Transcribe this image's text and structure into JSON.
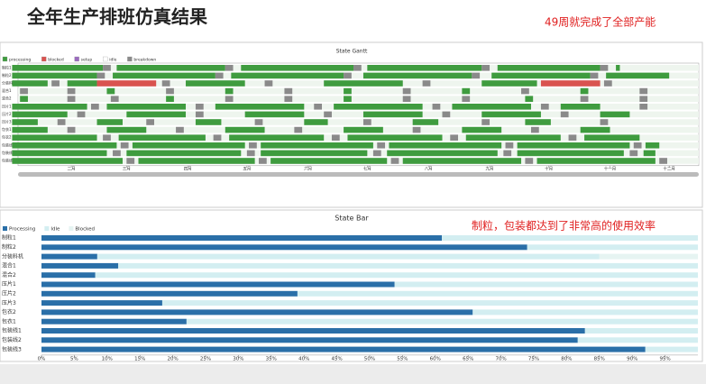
{
  "title": "全年生产排班仿真结果",
  "chart_data": [
    {
      "type": "gantt",
      "title": "State Gantt",
      "annotation": "49周就完成了全部产能",
      "rows": [
        "制粒1",
        "制粒2",
        "分装料机",
        "混合1",
        "混合2",
        "压片1",
        "压片2",
        "压片3",
        "包衣1",
        "包衣2",
        "包装线1",
        "包装线2",
        "包装线3"
      ],
      "states": [
        {
          "name": "processing",
          "color": "#3f9c3f"
        },
        {
          "name": "blocked",
          "color": "#d9534f"
        },
        {
          "name": "setup",
          "color": "#9b6bbf"
        },
        {
          "name": "idle",
          "color": "#ffffff"
        },
        {
          "name": "breakdown",
          "color": "#8a8a8a"
        }
      ],
      "segments": [
        [
          [
            2,
            48,
            0
          ],
          [
            48,
            52,
            4
          ],
          [
            55,
            110,
            0
          ],
          [
            110,
            114,
            4
          ],
          [
            118,
            175,
            0
          ],
          [
            175,
            179,
            4
          ],
          [
            182,
            240,
            0
          ],
          [
            240,
            244,
            4
          ],
          [
            248,
            300,
            0
          ],
          [
            300,
            304,
            4
          ],
          [
            308,
            310,
            0
          ]
        ],
        [
          [
            2,
            45,
            0
          ],
          [
            45,
            49,
            4
          ],
          [
            53,
            105,
            0
          ],
          [
            105,
            109,
            4
          ],
          [
            113,
            170,
            0
          ],
          [
            170,
            174,
            4
          ],
          [
            180,
            235,
            0
          ],
          [
            235,
            239,
            4
          ],
          [
            245,
            295,
            0
          ],
          [
            295,
            299,
            4
          ],
          [
            303,
            335,
            0
          ]
        ],
        [
          [
            2,
            20,
            0
          ],
          [
            22,
            26,
            4
          ],
          [
            30,
            45,
            0
          ],
          [
            45,
            75,
            1
          ],
          [
            78,
            82,
            4
          ],
          [
            90,
            120,
            0
          ],
          [
            130,
            134,
            4
          ],
          [
            160,
            200,
            0
          ],
          [
            210,
            214,
            4
          ],
          [
            240,
            268,
            0
          ],
          [
            270,
            300,
            1
          ],
          [
            302,
            306,
            4
          ]
        ],
        [
          [
            6,
            10,
            4
          ],
          [
            30,
            34,
            4
          ],
          [
            50,
            54,
            0
          ],
          [
            80,
            84,
            4
          ],
          [
            110,
            114,
            0
          ],
          [
            140,
            144,
            4
          ],
          [
            170,
            174,
            0
          ],
          [
            200,
            204,
            4
          ],
          [
            230,
            234,
            0
          ],
          [
            260,
            264,
            4
          ],
          [
            290,
            294,
            0
          ],
          [
            320,
            324,
            4
          ]
        ],
        [
          [
            6,
            10,
            0
          ],
          [
            30,
            34,
            4
          ],
          [
            52,
            56,
            4
          ],
          [
            80,
            84,
            0
          ],
          [
            110,
            114,
            4
          ],
          [
            140,
            144,
            4
          ],
          [
            170,
            174,
            0
          ],
          [
            200,
            204,
            4
          ],
          [
            230,
            234,
            4
          ],
          [
            262,
            266,
            0
          ],
          [
            290,
            294,
            4
          ],
          [
            320,
            324,
            4
          ]
        ],
        [
          [
            2,
            40,
            0
          ],
          [
            42,
            46,
            4
          ],
          [
            50,
            90,
            0
          ],
          [
            95,
            99,
            4
          ],
          [
            105,
            150,
            0
          ],
          [
            155,
            159,
            4
          ],
          [
            165,
            210,
            0
          ],
          [
            215,
            219,
            4
          ],
          [
            225,
            265,
            0
          ],
          [
            270,
            274,
            4
          ],
          [
            280,
            300,
            0
          ],
          [
            320,
            324,
            4
          ]
        ],
        [
          [
            2,
            30,
            0
          ],
          [
            35,
            39,
            4
          ],
          [
            60,
            90,
            0
          ],
          [
            95,
            99,
            4
          ],
          [
            120,
            150,
            0
          ],
          [
            160,
            164,
            4
          ],
          [
            180,
            210,
            0
          ],
          [
            220,
            224,
            4
          ],
          [
            240,
            270,
            0
          ],
          [
            280,
            284,
            4
          ],
          [
            300,
            315,
            0
          ]
        ],
        [
          [
            2,
            15,
            0
          ],
          [
            25,
            29,
            4
          ],
          [
            45,
            58,
            0
          ],
          [
            70,
            74,
            4
          ],
          [
            95,
            108,
            0
          ],
          [
            125,
            129,
            4
          ],
          [
            150,
            162,
            0
          ],
          [
            180,
            184,
            4
          ],
          [
            205,
            218,
            0
          ],
          [
            240,
            244,
            4
          ],
          [
            262,
            275,
            0
          ],
          [
            300,
            304,
            4
          ]
        ],
        [
          [
            2,
            20,
            0
          ],
          [
            30,
            34,
            4
          ],
          [
            50,
            70,
            0
          ],
          [
            85,
            89,
            4
          ],
          [
            110,
            130,
            0
          ],
          [
            145,
            149,
            4
          ],
          [
            170,
            190,
            0
          ],
          [
            205,
            209,
            4
          ],
          [
            230,
            250,
            0
          ],
          [
            265,
            269,
            4
          ],
          [
            290,
            305,
            0
          ]
        ],
        [
          [
            2,
            45,
            0
          ],
          [
            48,
            52,
            4
          ],
          [
            56,
            100,
            0
          ],
          [
            104,
            108,
            4
          ],
          [
            112,
            160,
            0
          ],
          [
            164,
            168,
            4
          ],
          [
            172,
            220,
            0
          ],
          [
            224,
            228,
            4
          ],
          [
            232,
            280,
            0
          ],
          [
            284,
            288,
            4
          ],
          [
            292,
            320,
            0
          ]
        ],
        [
          [
            2,
            55,
            0
          ],
          [
            57,
            61,
            4
          ],
          [
            63,
            120,
            0
          ],
          [
            122,
            126,
            4
          ],
          [
            128,
            185,
            0
          ],
          [
            187,
            191,
            4
          ],
          [
            193,
            250,
            0
          ],
          [
            252,
            256,
            4
          ],
          [
            258,
            315,
            0
          ],
          [
            317,
            321,
            4
          ],
          [
            323,
            330,
            0
          ]
        ],
        [
          [
            2,
            50,
            0
          ],
          [
            53,
            57,
            4
          ],
          [
            60,
            118,
            0
          ],
          [
            121,
            125,
            4
          ],
          [
            128,
            182,
            0
          ],
          [
            185,
            189,
            4
          ],
          [
            192,
            248,
            0
          ],
          [
            251,
            255,
            4
          ],
          [
            258,
            312,
            0
          ],
          [
            315,
            319,
            4
          ],
          [
            322,
            328,
            0
          ]
        ],
        [
          [
            2,
            58,
            0
          ],
          [
            60,
            64,
            4
          ],
          [
            66,
            125,
            0
          ],
          [
            127,
            131,
            4
          ],
          [
            133,
            192,
            0
          ],
          [
            194,
            198,
            4
          ],
          [
            200,
            260,
            0
          ],
          [
            262,
            266,
            4
          ],
          [
            268,
            328,
            0
          ],
          [
            330,
            334,
            4
          ]
        ]
      ],
      "xlim": [
        5,
        350
      ],
      "xticks": [
        {
          "value": 32,
          "label": "二月"
        },
        {
          "value": 60,
          "label": "三月"
        },
        {
          "value": 91,
          "label": "四月"
        },
        {
          "value": 121,
          "label": "五月"
        },
        {
          "value": 152,
          "label": "六月"
        },
        {
          "value": 182,
          "label": "七月"
        },
        {
          "value": 213,
          "label": "八月"
        },
        {
          "value": 244,
          "label": "九月"
        },
        {
          "value": 274,
          "label": "十月"
        },
        {
          "value": 305,
          "label": "十一月"
        },
        {
          "value": 335,
          "label": "十二月"
        }
      ]
    },
    {
      "type": "bar",
      "title": "State Bar",
      "annotation": "制粒，包装都达到了非常高的使用效率",
      "categories": [
        "制粒1",
        "制粒2",
        "分装料机",
        "混合1",
        "混合2",
        "压片1",
        "压片2",
        "压片3",
        "包衣2",
        "包衣1",
        "包装线1",
        "包装线2",
        "包装线3"
      ],
      "series": [
        {
          "name": "Processing",
          "color": "#2a6fa8",
          "values": [
            61,
            74,
            8.5,
            11.7,
            8.2,
            53.8,
            39,
            18.4,
            65.7,
            22.1,
            82.8,
            81.7,
            92
          ]
        },
        {
          "name": "Idle",
          "color": "#d3eef1",
          "values": [
            39,
            26,
            76.5,
            88.3,
            91.8,
            46.2,
            61,
            81.6,
            34.3,
            77.9,
            17.2,
            18.3,
            8
          ]
        },
        {
          "name": "Blocked",
          "color": "#e6f4f2",
          "values": [
            0,
            0,
            15,
            0,
            0,
            0,
            0,
            0,
            0,
            0,
            0,
            0,
            0
          ]
        }
      ],
      "xlim": [
        0,
        100
      ],
      "xticks": [
        {
          "value": 0,
          "label": "0%"
        },
        {
          "value": 5,
          "label": "5%"
        },
        {
          "value": 10,
          "label": "10%"
        },
        {
          "value": 15,
          "label": "15%"
        },
        {
          "value": 20,
          "label": "20%"
        },
        {
          "value": 25,
          "label": "25%"
        },
        {
          "value": 30,
          "label": "30%"
        },
        {
          "value": 35,
          "label": "35%"
        },
        {
          "value": 40,
          "label": "40%"
        },
        {
          "value": 45,
          "label": "45%"
        },
        {
          "value": 50,
          "label": "50%"
        },
        {
          "value": 55,
          "label": "55%"
        },
        {
          "value": 60,
          "label": "60%"
        },
        {
          "value": 65,
          "label": "65%"
        },
        {
          "value": 70,
          "label": "70%"
        },
        {
          "value": 75,
          "label": "75%"
        },
        {
          "value": 80,
          "label": "80%"
        },
        {
          "value": 85,
          "label": "85%"
        },
        {
          "value": 90,
          "label": "90%"
        },
        {
          "value": 95,
          "label": "95%"
        }
      ]
    }
  ]
}
